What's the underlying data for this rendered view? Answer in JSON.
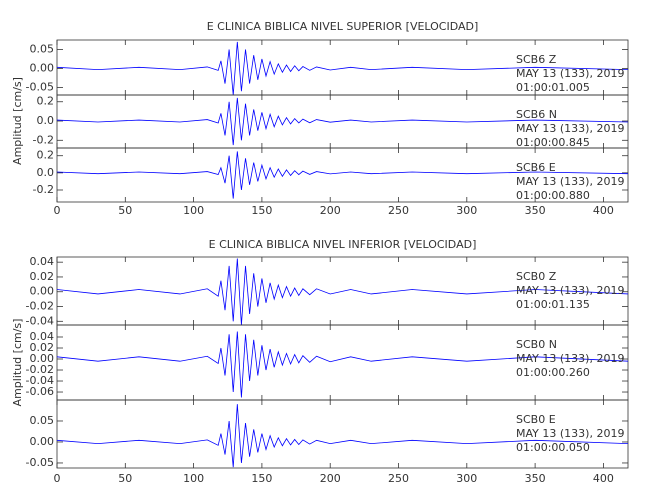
{
  "chart_data": [
    {
      "type": "line",
      "title": "E CLINICA BIBLICA NIVEL SUPERIOR [VELOCIDAD]",
      "ylabel": "Amplitud [cm/s]",
      "x": [
        0,
        30,
        60,
        90,
        110,
        118,
        120,
        123,
        126,
        129,
        132,
        135,
        138,
        141,
        144,
        147,
        150,
        153,
        156,
        159,
        162,
        165,
        168,
        171,
        174,
        177,
        180,
        185,
        190,
        200,
        215,
        230,
        260,
        300,
        350,
        418
      ],
      "xlim": [
        0,
        418
      ],
      "xticks": [
        0,
        50,
        100,
        150,
        200,
        250,
        300,
        350,
        400
      ],
      "panels": [
        {
          "ylim": [
            -0.07,
            0.075
          ],
          "yticks": [
            {
              "value": 0.05,
              "label": "0.05"
            },
            {
              "value": 0,
              "label": "0.00"
            },
            {
              "value": -0.05,
              "label": "-0.05"
            }
          ],
          "color": "#0000ff",
          "labels": [
            "SCB6   Z",
            "MAY 13 (133), 2019",
            "01:00:01.005"
          ],
          "values": [
            0.003,
            -0.003,
            0.003,
            -0.003,
            0.004,
            -0.005,
            0.02,
            -0.04,
            0.05,
            -0.07,
            0.07,
            -0.06,
            0.05,
            -0.04,
            0.035,
            -0.03,
            0.025,
            -0.02,
            0.018,
            -0.015,
            0.012,
            -0.01,
            0.009,
            -0.008,
            0.007,
            -0.006,
            0.005,
            -0.005,
            0.004,
            -0.004,
            0.003,
            -0.003,
            0.003,
            -0.003,
            0.003,
            -0.003
          ]
        },
        {
          "ylim": [
            -0.28,
            0.27
          ],
          "yticks": [
            0.2,
            {
              "value": 0,
              "label": "0.0"
            },
            -0.2
          ],
          "color": "#0000ff",
          "labels": [
            "SCB6   N",
            "MAY 13 (133), 2019",
            "01:00:00.845"
          ],
          "values": [
            0.01,
            -0.01,
            0.01,
            -0.01,
            0.015,
            -0.02,
            0.08,
            -0.15,
            0.2,
            -0.25,
            0.24,
            -0.2,
            0.18,
            -0.15,
            0.12,
            -0.1,
            0.09,
            -0.08,
            0.07,
            -0.06,
            0.05,
            -0.04,
            0.035,
            -0.03,
            0.025,
            -0.02,
            0.02,
            -0.018,
            0.015,
            -0.012,
            0.01,
            -0.01,
            0.01,
            -0.01,
            0.01,
            -0.01
          ]
        },
        {
          "ylim": [
            -0.34,
            0.29
          ],
          "yticks": [
            0.2,
            {
              "value": 0,
              "label": "0.0"
            },
            -0.2
          ],
          "color": "#0000ff",
          "labels": [
            "SCB6   E",
            "MAY 13 (133), 2019",
            "01:00:00.880"
          ],
          "values": [
            0.01,
            -0.01,
            0.01,
            -0.01,
            0.015,
            -0.02,
            0.06,
            -0.12,
            0.2,
            -0.3,
            0.25,
            -0.2,
            0.17,
            -0.14,
            0.12,
            -0.1,
            0.09,
            -0.07,
            0.06,
            -0.05,
            0.045,
            -0.04,
            0.035,
            -0.03,
            0.025,
            -0.02,
            0.02,
            -0.018,
            0.015,
            -0.012,
            0.01,
            -0.01,
            0.01,
            -0.01,
            0.01,
            -0.01
          ]
        }
      ]
    },
    {
      "type": "line",
      "title": "E CLINICA BIBLICA NIVEL INFERIOR [VELOCIDAD]",
      "ylabel": "Amplitud [cm/s]",
      "x": [
        0,
        30,
        60,
        90,
        110,
        118,
        120,
        123,
        126,
        129,
        132,
        135,
        138,
        141,
        144,
        147,
        150,
        153,
        156,
        159,
        162,
        165,
        168,
        171,
        174,
        177,
        180,
        185,
        190,
        200,
        215,
        230,
        260,
        300,
        350,
        418
      ],
      "xlim": [
        0,
        418
      ],
      "xticks": [
        0,
        50,
        100,
        150,
        200,
        250,
        300,
        350,
        400
      ],
      "panels": [
        {
          "ylim": [
            -0.045,
            0.047
          ],
          "yticks": [
            0.04,
            0.02,
            {
              "value": 0,
              "label": "0.00"
            },
            -0.02,
            -0.04
          ],
          "color": "#0000ff",
          "labels": [
            "SCB0   Z",
            "MAY 13 (133), 2019",
            "01:00:01.135"
          ],
          "values": [
            0.003,
            -0.003,
            0.003,
            -0.003,
            0.004,
            -0.006,
            0.015,
            -0.025,
            0.035,
            -0.04,
            0.045,
            -0.045,
            0.035,
            -0.03,
            0.025,
            -0.02,
            0.018,
            -0.015,
            0.012,
            -0.01,
            0.009,
            -0.008,
            0.007,
            -0.006,
            0.005,
            -0.005,
            0.004,
            -0.004,
            0.004,
            -0.003,
            0.003,
            -0.003,
            0.003,
            -0.003,
            0.003,
            -0.003
          ]
        },
        {
          "ylim": [
            -0.0745,
            0.0618
          ],
          "yticks": [
            0.04,
            0.02,
            {
              "value": 0,
              "label": "0.00"
            },
            -0.02,
            -0.04,
            -0.06
          ],
          "color": "#0000ff",
          "labels": [
            "SCB0   N",
            "MAY 13 (133), 2019",
            "01:00:00.260"
          ],
          "values": [
            0.004,
            -0.004,
            0.004,
            -0.004,
            0.005,
            -0.008,
            0.02,
            -0.03,
            0.045,
            -0.06,
            0.05,
            -0.07,
            0.045,
            -0.04,
            0.035,
            -0.03,
            0.025,
            -0.02,
            0.018,
            -0.015,
            0.013,
            -0.011,
            0.01,
            -0.009,
            0.008,
            -0.007,
            0.006,
            -0.006,
            0.005,
            -0.005,
            0.004,
            -0.004,
            0.004,
            -0.004,
            0.004,
            -0.004
          ]
        },
        {
          "ylim": [
            -0.062,
            0.1
          ],
          "yticks": [
            0.05,
            {
              "value": 0,
              "label": "0.00"
            },
            -0.05
          ],
          "color": "#0000ff",
          "labels": [
            "SCB0   E",
            "MAY 13 (133), 2019",
            "01:00:00.050"
          ],
          "values": [
            0.004,
            -0.004,
            0.004,
            -0.004,
            0.005,
            -0.008,
            0.02,
            -0.03,
            0.05,
            -0.06,
            0.09,
            -0.05,
            0.045,
            -0.035,
            0.03,
            -0.025,
            0.02,
            -0.018,
            0.015,
            -0.012,
            0.01,
            -0.009,
            0.008,
            -0.007,
            0.006,
            -0.006,
            0.005,
            -0.005,
            0.004,
            -0.004,
            0.004,
            -0.004,
            0.004,
            -0.004,
            0.004,
            -0.004
          ]
        }
      ]
    }
  ]
}
